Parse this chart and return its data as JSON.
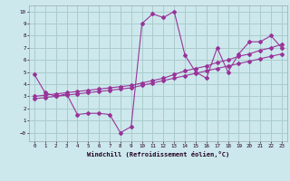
{
  "xlabel": "Windchill (Refroidissement éolien,°C)",
  "bg_color": "#cce8ec",
  "grid_color": "#aacccc",
  "line_color": "#993399",
  "xlim": [
    -0.5,
    23.5
  ],
  "ylim": [
    -0.7,
    10.5
  ],
  "xticks": [
    0,
    1,
    2,
    3,
    4,
    5,
    6,
    7,
    8,
    9,
    10,
    11,
    12,
    13,
    14,
    15,
    16,
    17,
    18,
    19,
    20,
    21,
    22,
    23
  ],
  "yticks": [
    0,
    1,
    2,
    3,
    4,
    5,
    6,
    7,
    8,
    9,
    10
  ],
  "ytick_labels": [
    "−0",
    "1",
    "2",
    "3",
    "4",
    "5",
    "6",
    "7",
    "8",
    "9",
    "10"
  ],
  "line1_x": [
    0,
    1,
    2,
    3,
    4,
    5,
    6,
    7,
    8,
    9,
    10,
    11,
    12,
    13,
    14,
    15,
    16,
    17,
    18,
    19,
    20,
    21,
    22,
    23
  ],
  "line1_y": [
    4.8,
    3.3,
    3.0,
    3.2,
    1.5,
    1.6,
    1.6,
    1.5,
    0.0,
    0.5,
    9.0,
    9.8,
    9.5,
    10.0,
    6.4,
    5.0,
    4.5,
    7.0,
    5.0,
    6.5,
    7.5,
    7.5,
    8.0,
    7.0
  ],
  "line2_x": [
    0,
    1,
    2,
    3,
    4,
    5,
    6,
    7,
    8,
    9,
    10,
    11,
    12,
    13,
    14,
    15,
    16,
    17,
    18,
    19,
    20,
    21,
    22,
    23
  ],
  "line2_y": [
    3.0,
    3.1,
    3.2,
    3.3,
    3.4,
    3.5,
    3.6,
    3.7,
    3.8,
    3.9,
    4.1,
    4.3,
    4.5,
    4.8,
    5.1,
    5.3,
    5.5,
    5.8,
    6.0,
    6.3,
    6.5,
    6.8,
    7.0,
    7.3
  ],
  "line3_x": [
    0,
    1,
    2,
    3,
    4,
    5,
    6,
    7,
    8,
    9,
    10,
    11,
    12,
    13,
    14,
    15,
    16,
    17,
    18,
    19,
    20,
    21,
    22,
    23
  ],
  "line3_y": [
    2.8,
    2.9,
    3.0,
    3.1,
    3.2,
    3.3,
    3.4,
    3.5,
    3.6,
    3.7,
    3.9,
    4.1,
    4.3,
    4.5,
    4.7,
    4.9,
    5.1,
    5.3,
    5.5,
    5.7,
    5.9,
    6.1,
    6.3,
    6.5
  ]
}
